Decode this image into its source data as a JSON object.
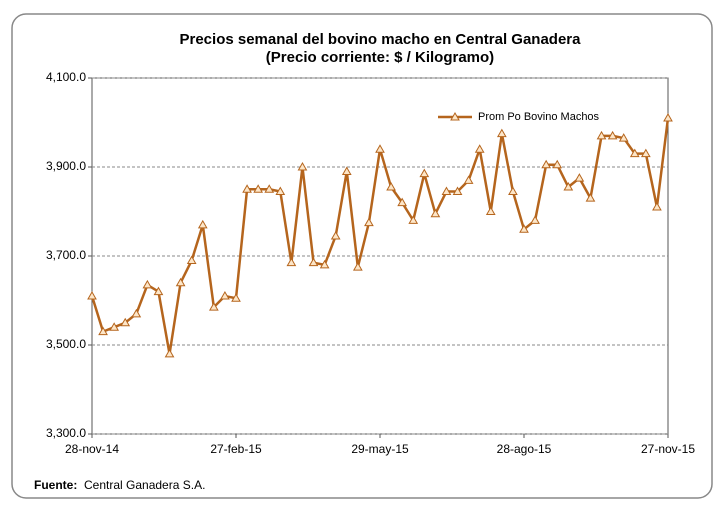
{
  "chart_data": {
    "type": "line",
    "title": "Precios semanal del bovino  macho en Central Ganadera",
    "subtitle": "(Precio corriente: $ / Kilogramo)",
    "categories": [
      "28-nov-14",
      null,
      null,
      null,
      null,
      null,
      null,
      null,
      null,
      null,
      null,
      null,
      null,
      "27-feb-15",
      null,
      null,
      null,
      null,
      null,
      null,
      null,
      null,
      null,
      null,
      null,
      null,
      "29-may-15",
      null,
      null,
      null,
      null,
      null,
      null,
      null,
      null,
      null,
      null,
      null,
      null,
      "28-ago-15",
      null,
      null,
      null,
      null,
      null,
      null,
      null,
      null,
      null,
      null,
      null,
      null,
      "27-nov-15"
    ],
    "series": [
      {
        "name": "Prom Po Bovino Machos",
        "color": "#b5651d",
        "values": [
          3610,
          3530,
          3540,
          3550,
          3570,
          3635,
          3620,
          3480,
          3640,
          3690,
          3770,
          3585,
          3610,
          3605,
          3850,
          3850,
          3850,
          3845,
          3685,
          3900,
          3685,
          3680,
          3745,
          3890,
          3675,
          3775,
          3940,
          3855,
          3820,
          3780,
          3885,
          3795,
          3845,
          3845,
          3870,
          3940,
          3800,
          3975,
          3845,
          3760,
          3780,
          3905,
          3905,
          3855,
          3875,
          3830,
          3970,
          3970,
          3965,
          3930,
          3930,
          3810,
          4010
        ]
      }
    ],
    "ylim": [
      3300,
      4100
    ],
    "yticks": [
      {
        "value": 3300,
        "label": "3,300.0"
      },
      {
        "value": 3500,
        "label": "3,500.0"
      },
      {
        "value": 3700,
        "label": "3,700.0"
      },
      {
        "value": 3900,
        "label": "3,900.0"
      },
      {
        "value": 4100,
        "label": "4,100.0"
      }
    ],
    "grid": true,
    "legend": "upper right",
    "source_label": "Fuente:",
    "source": "Central Ganadera S.A."
  }
}
